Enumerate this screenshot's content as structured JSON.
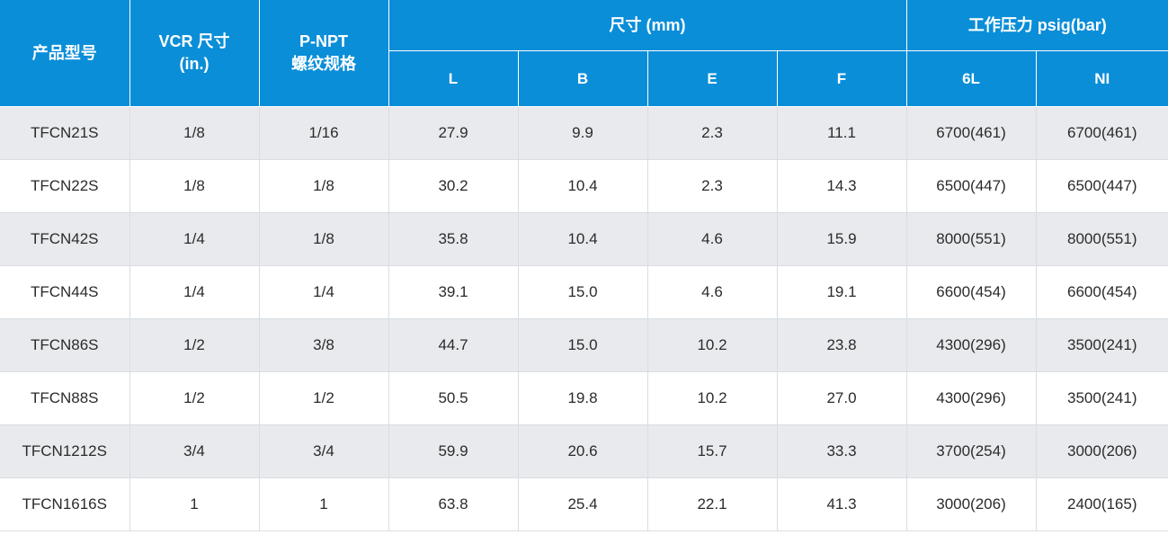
{
  "table": {
    "headers": {
      "model": "产品型号",
      "vcr_line1": "VCR 尺寸",
      "vcr_line2": "(in.)",
      "pnpt_line1": "P-NPT",
      "pnpt_line2": "螺纹规格",
      "dimensions": "尺寸 (mm)",
      "pressure": "工作压力 psig(bar)",
      "dim_cols": [
        "L",
        "B",
        "E",
        "F"
      ],
      "pressure_cols": [
        "6L",
        "NI"
      ]
    },
    "rows": [
      [
        "TFCN21S",
        "1/8",
        "1/16",
        "27.9",
        "9.9",
        "2.3",
        "11.1",
        "6700(461)",
        "6700(461)"
      ],
      [
        "TFCN22S",
        "1/8",
        "1/8",
        "30.2",
        "10.4",
        "2.3",
        "14.3",
        "6500(447)",
        "6500(447)"
      ],
      [
        "TFCN42S",
        "1/4",
        "1/8",
        "35.8",
        "10.4",
        "4.6",
        "15.9",
        "8000(551)",
        "8000(551)"
      ],
      [
        "TFCN44S",
        "1/4",
        "1/4",
        "39.1",
        "15.0",
        "4.6",
        "19.1",
        "6600(454)",
        "6600(454)"
      ],
      [
        "TFCN86S",
        "1/2",
        "3/8",
        "44.7",
        "15.0",
        "10.2",
        "23.8",
        "4300(296)",
        "3500(241)"
      ],
      [
        "TFCN88S",
        "1/2",
        "1/2",
        "50.5",
        "19.8",
        "10.2",
        "27.0",
        "4300(296)",
        "3500(241)"
      ],
      [
        "TFCN1212S",
        "3/4",
        "3/4",
        "59.9",
        "20.6",
        "15.7",
        "33.3",
        "3700(254)",
        "3000(206)"
      ],
      [
        "TFCN1616S",
        "1",
        "1",
        "63.8",
        "25.4",
        "22.1",
        "41.3",
        "3000(206)",
        "2400(165)"
      ]
    ]
  },
  "colors": {
    "header_bg": "#0a8ed8",
    "header_text": "#ffffff",
    "row_shade": "#e8eaed",
    "row_plain": "#ffffff",
    "cell_text": "#2b2b2b"
  }
}
